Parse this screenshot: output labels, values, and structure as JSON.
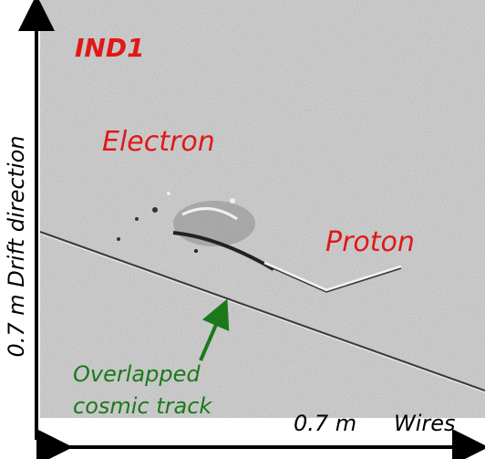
{
  "labels": {
    "plane": "IND1",
    "electron": "Electron",
    "proton": "Proton",
    "cosmic_line1": "Overlapped",
    "cosmic_line2": "cosmic track",
    "y_axis": "0.7 m Drift direction",
    "x_length": "0.7 m",
    "x_axis": "Wires"
  }
}
